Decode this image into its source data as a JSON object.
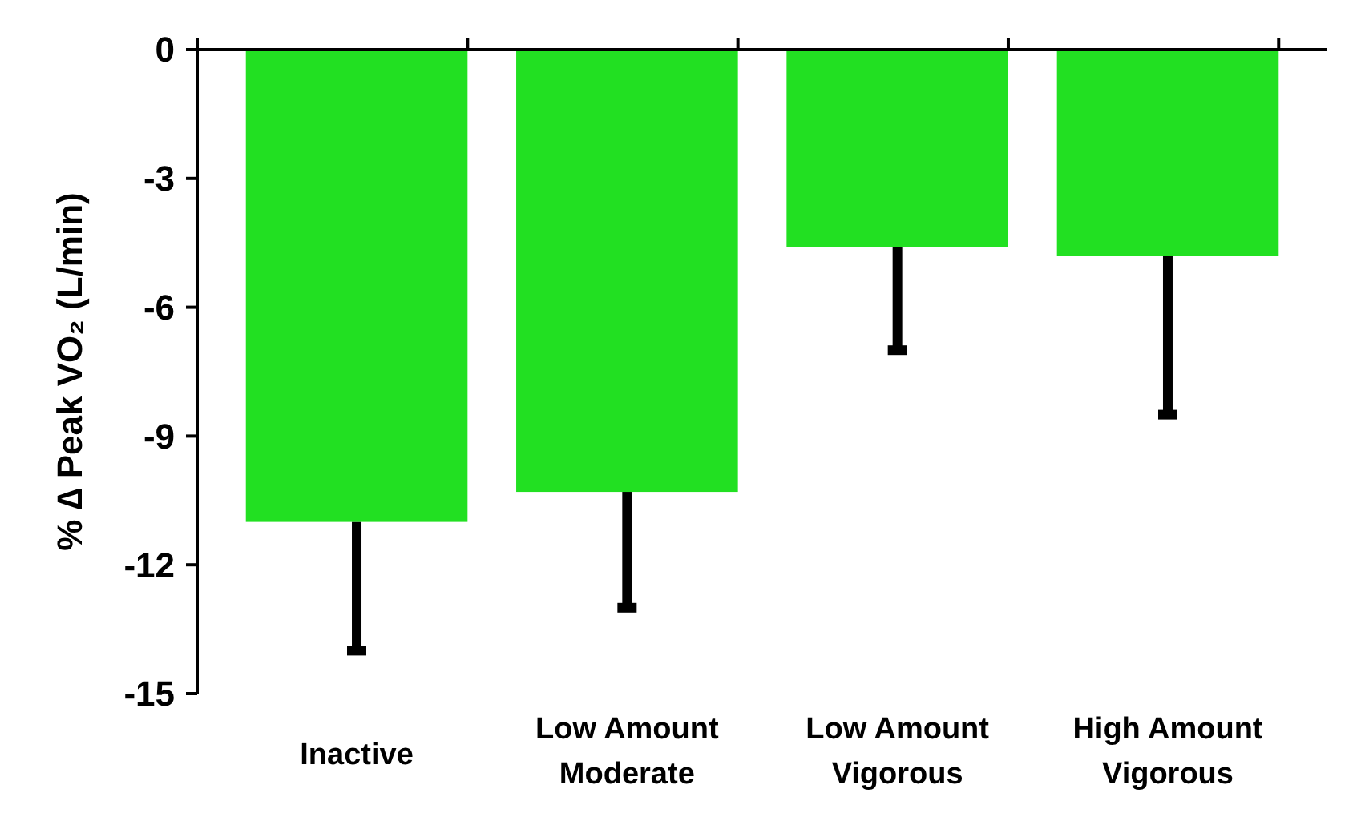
{
  "chart_data": {
    "type": "bar",
    "ylabel": "% ∆ Peak VO₂ (L/min)",
    "categories": [
      "Inactive",
      "Low Amount\nModerate",
      "Low Amount\nVigorous",
      "High Amount\nVigorous"
    ],
    "values": [
      -11,
      -10.3,
      -4.6,
      -4.8
    ],
    "errors": [
      [
        -14,
        -11
      ],
      [
        -13,
        -10.3
      ],
      [
        -7,
        -4.6
      ],
      [
        -8.5,
        -4.8
      ]
    ],
    "color": "#22e022",
    "ylim": [
      -15,
      0
    ],
    "yticks": [
      -15,
      -12,
      -9,
      -6,
      -3,
      0
    ],
    "grid": false
  }
}
